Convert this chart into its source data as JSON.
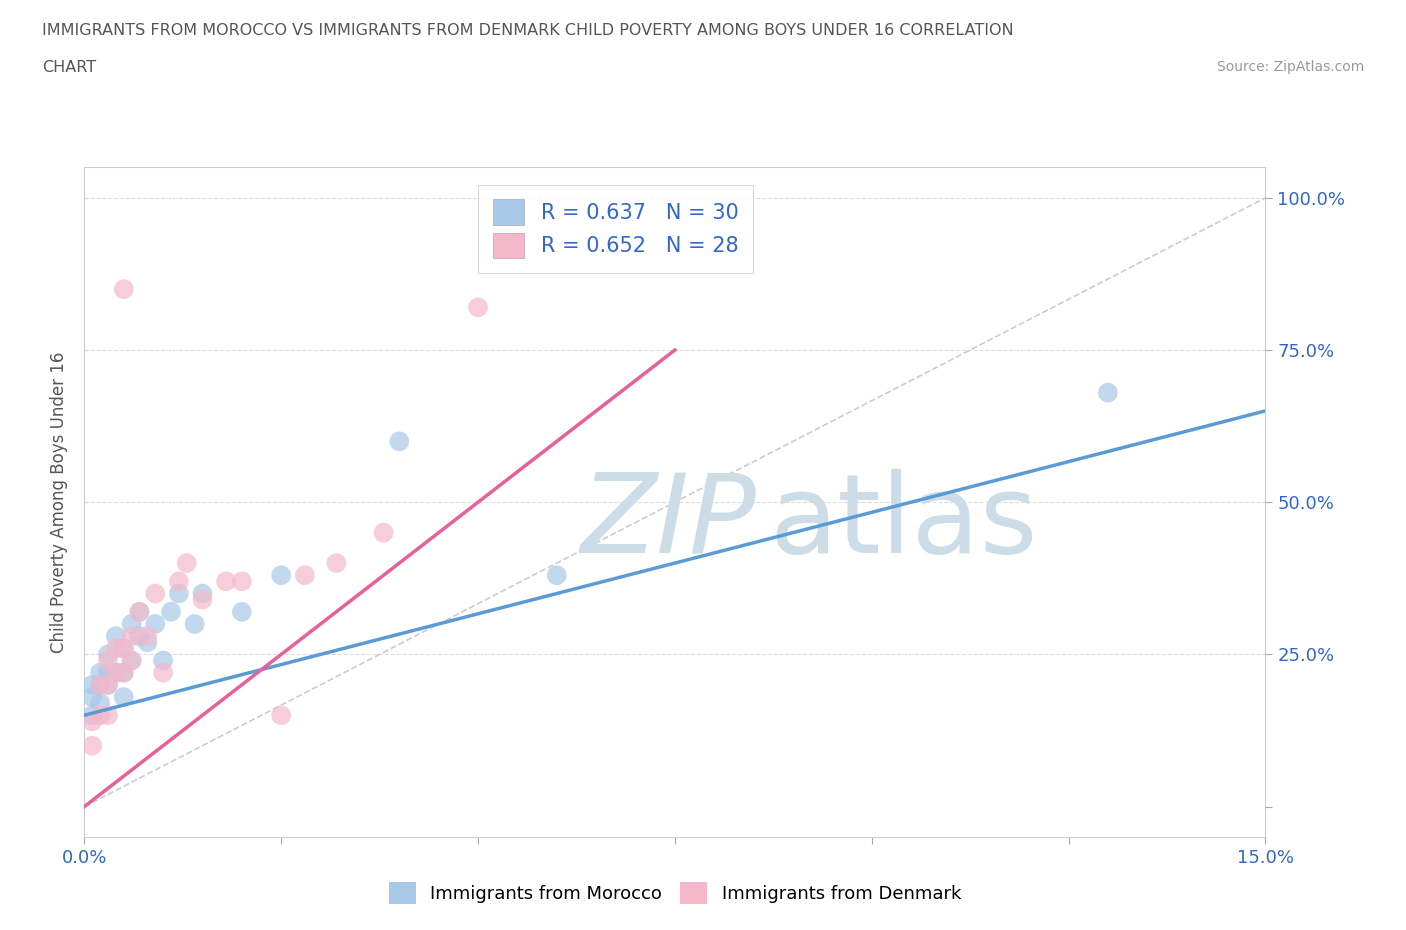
{
  "title_line1": "IMMIGRANTS FROM MOROCCO VS IMMIGRANTS FROM DENMARK CHILD POVERTY AMONG BOYS UNDER 16 CORRELATION",
  "title_line2": "CHART",
  "source": "Source: ZipAtlas.com",
  "ylabel": "Child Poverty Among Boys Under 16",
  "xlim": [
    0.0,
    0.15
  ],
  "ylim": [
    -0.02,
    1.05
  ],
  "xticks": [
    0.0,
    0.025,
    0.05,
    0.075,
    0.1,
    0.125,
    0.15
  ],
  "yticks": [
    0.0,
    0.25,
    0.5,
    0.75,
    1.0
  ],
  "morocco_R": 0.637,
  "morocco_N": 30,
  "denmark_R": 0.652,
  "denmark_N": 28,
  "morocco_color": "#a8c8e8",
  "denmark_color": "#f5b8cb",
  "morocco_line_color": "#5b9bd5",
  "denmark_line_color": "#e8609a",
  "watermark_color": "#ccdde8",
  "morocco_scatter_x": [
    0.001,
    0.001,
    0.001,
    0.002,
    0.002,
    0.002,
    0.003,
    0.003,
    0.003,
    0.004,
    0.004,
    0.005,
    0.005,
    0.005,
    0.006,
    0.006,
    0.007,
    0.007,
    0.008,
    0.009,
    0.01,
    0.011,
    0.012,
    0.014,
    0.015,
    0.02,
    0.025,
    0.04,
    0.06,
    0.13
  ],
  "morocco_scatter_y": [
    0.15,
    0.18,
    0.2,
    0.17,
    0.2,
    0.22,
    0.2,
    0.22,
    0.25,
    0.22,
    0.28,
    0.18,
    0.22,
    0.26,
    0.24,
    0.3,
    0.28,
    0.32,
    0.27,
    0.3,
    0.24,
    0.32,
    0.35,
    0.3,
    0.35,
    0.32,
    0.38,
    0.6,
    0.38,
    0.68
  ],
  "denmark_scatter_x": [
    0.001,
    0.001,
    0.002,
    0.002,
    0.003,
    0.003,
    0.003,
    0.004,
    0.004,
    0.005,
    0.005,
    0.005,
    0.006,
    0.006,
    0.007,
    0.008,
    0.009,
    0.01,
    0.012,
    0.013,
    0.015,
    0.018,
    0.02,
    0.025,
    0.028,
    0.032,
    0.038,
    0.05
  ],
  "denmark_scatter_y": [
    0.1,
    0.14,
    0.15,
    0.2,
    0.15,
    0.2,
    0.24,
    0.22,
    0.26,
    0.22,
    0.26,
    0.85,
    0.24,
    0.28,
    0.32,
    0.28,
    0.35,
    0.22,
    0.37,
    0.4,
    0.34,
    0.37,
    0.37,
    0.15,
    0.38,
    0.4,
    0.45,
    0.82
  ],
  "background_color": "#ffffff",
  "grid_color": "#dddddd"
}
